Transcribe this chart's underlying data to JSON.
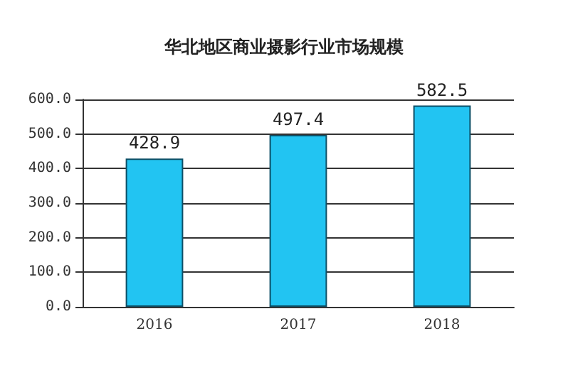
{
  "chart_data": {
    "type": "bar",
    "title": "华北地区商业摄影行业市场规模",
    "categories": [
      "2016",
      "2017",
      "2018"
    ],
    "values": [
      428.9,
      497.4,
      582.5
    ],
    "color": "#22c4f2",
    "ylim": [
      0,
      600
    ],
    "yticks": [
      {
        "value": 0,
        "label": "0.0"
      },
      {
        "value": 100,
        "label": "100.0"
      },
      {
        "value": 200,
        "label": "200.0"
      },
      {
        "value": 300,
        "label": "300.0"
      },
      {
        "value": 400,
        "label": "400.0"
      },
      {
        "value": 500,
        "label": "500.0"
      },
      {
        "value": 600,
        "label": "600.0"
      }
    ],
    "grid": "y",
    "data_labels": true
  }
}
